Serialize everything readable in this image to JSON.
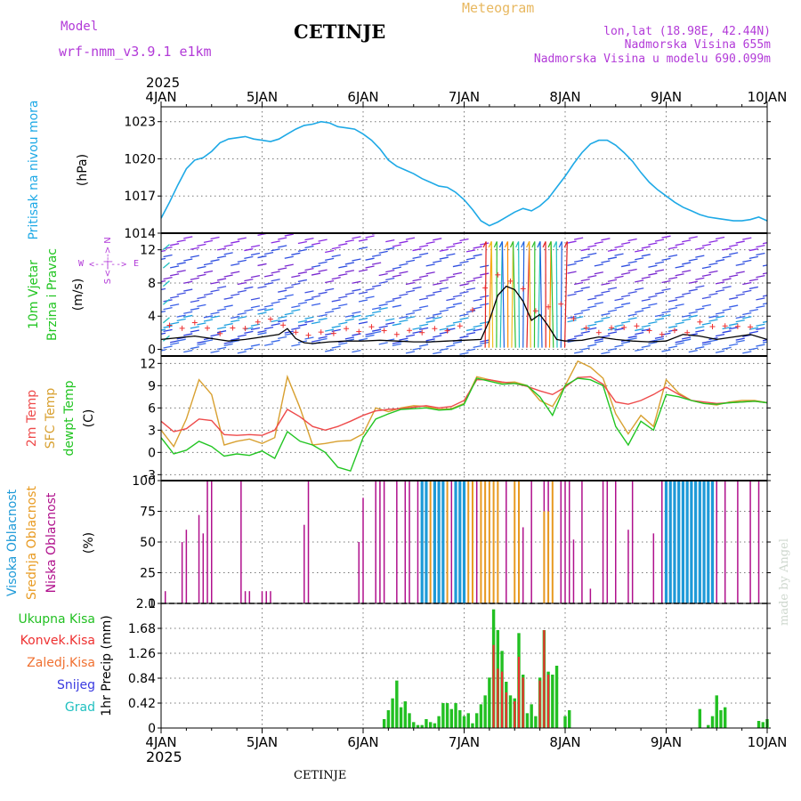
{
  "header": {
    "model_label": "Model",
    "model_name": "wrf-nmm_v3.9.1 e1km",
    "station": "CETINJE",
    "meteogram": "Meteogram",
    "lonlat": "lon,lat (18.98E, 42.44N)",
    "altitude": "Nadmorska Visina 655m",
    "model_altitude": "Nadmorska Visina u modelu 690.099m",
    "watermark": "made by Angel",
    "footer_station": "CETINJE"
  },
  "time_axis": {
    "year": "2025",
    "labels": [
      "4JAN",
      "5JAN",
      "6JAN",
      "7JAN",
      "8JAN",
      "9JAN",
      "10JAN"
    ],
    "range_hours": [
      0,
      144
    ]
  },
  "colors": {
    "pressure": "#1ea9e6",
    "temp2m": "#ee4a4a",
    "sfc_temp": "#d8a030",
    "dewpoint": "#22c522",
    "low_cloud": "#b0108c",
    "mid_cloud": "#e89a20",
    "high_cloud": "#1e9ad8",
    "total_precip": "#22c022",
    "conv_precip": "#ee3030",
    "wind_dir_label": "#b23ad8",
    "title_purple": "#b23ad8",
    "title_orange": "#e8b860"
  },
  "panels": {
    "pressure": {
      "label_name": "Pritisak na nivou mora",
      "label_unit": "(hPa)"
    },
    "wind": {
      "label_name1": "10m Vjetar",
      "label_name2": "Brzina i Pravac",
      "label_unit": "(m/s)",
      "dir_n": "N",
      "dir_s": "S",
      "dir_w": "W",
      "dir_e": "E",
      "dir_arrows": "<--|-->"
    },
    "temperature": {
      "label_t2m": "2m Temp",
      "label_sfc": "SFC Temp",
      "label_dew": "dewpt Temp",
      "label_unit": "(C)"
    },
    "cloud": {
      "label_high": "Visoka Oblacnost",
      "label_mid": "Srednja Oblacnost",
      "label_low": "Niska Oblacnost",
      "label_unit": "(%)"
    },
    "precip": {
      "label_total": "Ukupna Kisa",
      "label_conv": "Konvek.Kisa",
      "label_frozen": "Zaledj.Kisa",
      "label_snow": "Snijeg",
      "label_hail": "Grad",
      "label_unit": "1hr Precip (mm)"
    }
  },
  "chart_data": [
    {
      "type": "line",
      "title": "",
      "ylabel": "(hPa)",
      "ylim": [
        1014,
        1024.2
      ],
      "yticks": [
        1014,
        1017,
        1020,
        1023
      ],
      "series": [
        {
          "name": "Pritisak na nivou mora",
          "x": [
            0,
            2,
            4,
            6,
            8,
            10,
            12,
            14,
            16,
            18,
            20,
            22,
            24,
            26,
            28,
            30,
            32,
            34,
            36,
            38,
            40,
            42,
            44,
            46,
            48,
            50,
            52,
            54,
            56,
            58,
            60,
            62,
            64,
            66,
            68,
            70,
            72,
            74,
            76,
            78,
            80,
            82,
            84,
            86,
            88,
            90,
            92,
            94,
            96,
            98,
            100,
            102,
            104,
            106,
            108,
            110,
            112,
            114,
            116,
            118,
            120,
            122,
            124,
            126,
            128,
            130,
            132,
            134,
            136,
            138,
            140,
            142,
            144
          ],
          "values": [
            1015.2,
            1016.5,
            1017.9,
            1019.2,
            1019.9,
            1020.1,
            1020.6,
            1021.3,
            1021.6,
            1021.7,
            1021.8,
            1021.6,
            1021.5,
            1021.4,
            1021.6,
            1022.0,
            1022.4,
            1022.7,
            1022.8,
            1023.0,
            1022.9,
            1022.6,
            1022.5,
            1022.4,
            1022.0,
            1021.5,
            1020.8,
            1019.9,
            1019.4,
            1019.1,
            1018.8,
            1018.4,
            1018.1,
            1017.8,
            1017.7,
            1017.3,
            1016.7,
            1015.9,
            1015.0,
            1014.6,
            1014.9,
            1015.3,
            1015.7,
            1016.0,
            1015.8,
            1016.2,
            1016.8,
            1017.7,
            1018.6,
            1019.6,
            1020.5,
            1021.2,
            1021.5,
            1021.5,
            1021.1,
            1020.5,
            1019.8,
            1018.9,
            1018.1,
            1017.5,
            1017.0,
            1016.5,
            1016.1,
            1015.8,
            1015.5,
            1015.3,
            1015.2,
            1015.1,
            1015.0,
            1015.0,
            1015.1,
            1015.3,
            1015.0
          ]
        }
      ]
    },
    {
      "type": "line",
      "title": "",
      "ylabel": "(m/s)",
      "ylim": [
        -0.8,
        14
      ],
      "yticks": [
        0,
        4,
        8,
        12
      ],
      "series": [
        {
          "name": "wind speed",
          "x": [
            0,
            4,
            8,
            12,
            16,
            20,
            24,
            28,
            30,
            32,
            34,
            36,
            40,
            44,
            48,
            52,
            56,
            60,
            64,
            68,
            72,
            76,
            78,
            80,
            82,
            84,
            86,
            88,
            90,
            92,
            94,
            96,
            100,
            104,
            108,
            112,
            116,
            120,
            124,
            128,
            132,
            136,
            140,
            144
          ],
          "values": [
            1.2,
            1.4,
            1.6,
            1.3,
            1.0,
            1.2,
            1.5,
            1.8,
            2.5,
            1.3,
            0.8,
            0.7,
            0.9,
            1.0,
            1.0,
            1.1,
            1.0,
            0.9,
            0.9,
            1.0,
            1.1,
            1.2,
            3.5,
            6.5,
            7.6,
            7.2,
            5.8,
            3.5,
            4.2,
            2.8,
            1.2,
            1.0,
            1.1,
            1.5,
            1.2,
            1.0,
            0.9,
            1.0,
            1.8,
            1.6,
            1.2,
            1.5,
            1.8,
            1.2
          ]
        }
      ]
    },
    {
      "type": "line",
      "title": "",
      "ylabel": "(C)",
      "ylim": [
        -3.8,
        13
      ],
      "yticks": [
        -3,
        0,
        3,
        6,
        9,
        12
      ],
      "legend": [
        "2m Temp",
        "SFC Temp",
        "dewpt Temp"
      ],
      "series": [
        {
          "name": "2m Temp",
          "x": [
            0,
            3,
            6,
            9,
            12,
            15,
            18,
            21,
            24,
            27,
            30,
            33,
            36,
            39,
            42,
            45,
            48,
            51,
            54,
            57,
            60,
            63,
            66,
            69,
            72,
            75,
            78,
            81,
            84,
            87,
            90,
            93,
            96,
            99,
            102,
            105,
            108,
            111,
            114,
            117,
            120,
            123,
            126,
            129,
            132,
            135,
            138,
            141,
            144
          ],
          "values": [
            4.2,
            2.8,
            3.2,
            4.5,
            4.3,
            2.4,
            2.3,
            2.4,
            2.3,
            3.0,
            5.8,
            4.8,
            3.5,
            3.0,
            3.5,
            4.2,
            5.0,
            5.6,
            5.8,
            5.9,
            6.1,
            6.3,
            6.0,
            6.2,
            7.0,
            9.8,
            9.8,
            9.5,
            9.3,
            8.9,
            8.3,
            7.8,
            8.8,
            10.1,
            10.2,
            9.2,
            6.8,
            6.5,
            7.0,
            7.8,
            8.8,
            7.8,
            7.0,
            6.8,
            6.6,
            6.7,
            6.8,
            6.9,
            6.7
          ]
        },
        {
          "name": "SFC Temp",
          "x": [
            0,
            3,
            6,
            9,
            12,
            15,
            18,
            21,
            24,
            27,
            30,
            33,
            36,
            39,
            42,
            45,
            48,
            51,
            54,
            57,
            60,
            63,
            66,
            69,
            72,
            75,
            78,
            81,
            84,
            87,
            90,
            93,
            96,
            99,
            102,
            105,
            108,
            111,
            114,
            117,
            120,
            123,
            126,
            129,
            132,
            135,
            138,
            141,
            144
          ],
          "values": [
            3.0,
            0.8,
            4.5,
            9.8,
            7.8,
            1.0,
            1.5,
            1.8,
            1.2,
            2.0,
            10.2,
            6.0,
            1.0,
            1.2,
            1.5,
            1.6,
            2.5,
            6.0,
            5.5,
            6.0,
            6.3,
            6.2,
            5.8,
            5.9,
            6.6,
            10.2,
            9.8,
            9.4,
            9.5,
            9.0,
            7.0,
            6.2,
            9.0,
            12.3,
            11.5,
            10.0,
            5.2,
            2.5,
            5.0,
            3.5,
            9.8,
            8.0,
            7.0,
            6.6,
            6.4,
            6.8,
            7.0,
            7.0,
            6.7
          ]
        },
        {
          "name": "dewpt Temp",
          "x": [
            0,
            3,
            6,
            9,
            12,
            15,
            18,
            21,
            24,
            27,
            30,
            33,
            36,
            39,
            42,
            45,
            48,
            51,
            54,
            57,
            60,
            63,
            66,
            69,
            72,
            75,
            78,
            81,
            84,
            87,
            90,
            93,
            96,
            99,
            102,
            105,
            108,
            111,
            114,
            117,
            120,
            123,
            126,
            129,
            132,
            135,
            138,
            141,
            144
          ],
          "values": [
            2.0,
            -0.2,
            0.3,
            1.5,
            0.8,
            -0.5,
            -0.2,
            -0.4,
            0.2,
            -0.8,
            2.8,
            1.5,
            1.0,
            0.0,
            -2.0,
            -2.5,
            2.0,
            4.5,
            5.2,
            5.8,
            5.9,
            6.0,
            5.7,
            5.8,
            6.5,
            10.0,
            9.6,
            9.2,
            9.3,
            9.0,
            7.5,
            5.0,
            9.0,
            10.0,
            9.8,
            9.0,
            3.5,
            1.0,
            4.2,
            3.0,
            7.8,
            7.5,
            7.0,
            6.6,
            6.5,
            6.7,
            6.8,
            6.9,
            6.7
          ]
        }
      ]
    },
    {
      "type": "bar",
      "title": "",
      "ylabel": "(%)",
      "ylim": [
        0,
        100
      ],
      "yticks": [
        0,
        25,
        50,
        75,
        100
      ],
      "legend": [
        "Visoka Oblacnost",
        "Srednja Oblacnost",
        "Niska Oblacnost"
      ],
      "series": [
        {
          "name": "Niska Oblacnost",
          "x": [
            1,
            5,
            6,
            9,
            10,
            11,
            12,
            19,
            20,
            21,
            24,
            25,
            26,
            34,
            35,
            47,
            48,
            51,
            52,
            53,
            56,
            58,
            59,
            61,
            62,
            63,
            64,
            65,
            66,
            67,
            69,
            70,
            72,
            73,
            75,
            77,
            80,
            82,
            85,
            86,
            88,
            91,
            92,
            95,
            96,
            97,
            98,
            100,
            102,
            105,
            106,
            108,
            111,
            112,
            117,
            119,
            120,
            122,
            124,
            126,
            127,
            129,
            132,
            134,
            137,
            140,
            142
          ],
          "values": [
            10,
            50,
            60,
            72,
            57,
            100,
            100,
            100,
            10,
            10,
            10,
            10,
            10,
            64,
            100,
            50,
            86,
            100,
            100,
            100,
            100,
            100,
            100,
            100,
            100,
            100,
            100,
            100,
            80,
            100,
            100,
            100,
            100,
            100,
            100,
            100,
            100,
            100,
            100,
            62,
            100,
            100,
            100,
            100,
            100,
            100,
            52,
            100,
            12,
            100,
            100,
            100,
            60,
            100,
            57,
            100,
            100,
            100,
            100,
            100,
            100,
            100,
            100,
            100,
            100,
            100,
            100
          ]
        },
        {
          "name": "Srednja Oblacnost",
          "x": [
            63,
            64,
            65,
            67,
            68,
            73,
            74,
            76,
            77,
            78,
            79,
            80,
            84,
            85,
            91,
            92,
            93
          ],
          "values": [
            100,
            100,
            100,
            100,
            100,
            100,
            100,
            100,
            100,
            100,
            100,
            100,
            100,
            100,
            75,
            75,
            100
          ]
        },
        {
          "name": "Visoka Oblacnost",
          "x": [
            62,
            63,
            65,
            66,
            67,
            70,
            71,
            72,
            120,
            121,
            122,
            123,
            124,
            125,
            126,
            127,
            128,
            129,
            130,
            131
          ],
          "values": [
            100,
            100,
            100,
            100,
            100,
            100,
            100,
            100,
            100,
            100,
            100,
            100,
            100,
            100,
            100,
            100,
            100,
            100,
            100,
            100
          ]
        }
      ]
    },
    {
      "type": "bar",
      "title": "",
      "ylabel": "1hr Precip (mm)",
      "ylim": [
        0,
        2.1
      ],
      "yticks": [
        0,
        0.42,
        0.84,
        1.26,
        1.68,
        2.1
      ],
      "legend": [
        "Ukupna Kisa",
        "Konvek.Kisa",
        "Zaledj.Kisa",
        "Snijeg",
        "Grad"
      ],
      "series": [
        {
          "name": "Ukupna Kisa",
          "x": [
            53,
            54,
            55,
            56,
            57,
            58,
            59,
            60,
            61,
            62,
            63,
            64,
            65,
            66,
            67,
            68,
            69,
            70,
            71,
            72,
            73,
            74,
            75,
            76,
            77,
            78,
            79,
            80,
            81,
            82,
            83,
            84,
            85,
            86,
            87,
            88,
            89,
            90,
            91,
            92,
            93,
            94,
            96,
            97,
            128,
            130,
            131,
            132,
            133,
            134,
            142,
            143,
            144
          ],
          "values": [
            0.15,
            0.3,
            0.5,
            0.8,
            0.35,
            0.45,
            0.25,
            0.1,
            0.05,
            0.05,
            0.15,
            0.1,
            0.08,
            0.2,
            0.42,
            0.42,
            0.32,
            0.42,
            0.3,
            0.2,
            0.25,
            0.08,
            0.25,
            0.4,
            0.55,
            0.85,
            2.0,
            1.65,
            1.3,
            0.78,
            0.55,
            0.5,
            1.6,
            0.9,
            0.25,
            0.4,
            0.2,
            0.85,
            1.65,
            0.95,
            0.9,
            1.05,
            0.2,
            0.3,
            0.32,
            0.05,
            0.2,
            0.55,
            0.3,
            0.35,
            0.12,
            0.1,
            0.15
          ]
        },
        {
          "name": "Konvek.Kisa",
          "x": [
            79,
            80,
            81,
            82,
            84,
            85,
            86,
            90,
            91,
            92
          ],
          "values": [
            1.4,
            1.0,
            0.95,
            0.6,
            0.45,
            1.2,
            0.85,
            0.8,
            1.65,
            0.9
          ]
        }
      ]
    }
  ]
}
